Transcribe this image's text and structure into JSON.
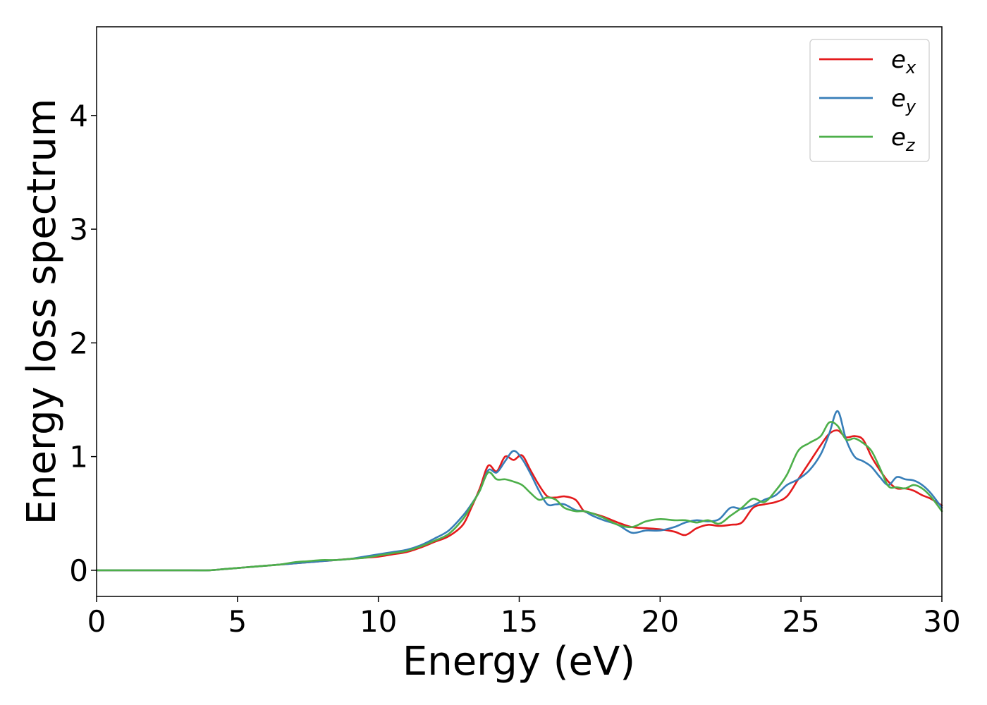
{
  "chart_data": {
    "type": "line",
    "xlabel": "Energy (eV)",
    "ylabel": "Energy loss spectrum",
    "xlim": [
      0,
      30
    ],
    "ylim": [
      -0.23,
      4.78
    ],
    "xticks": [
      0,
      5,
      10,
      15,
      20,
      25,
      30
    ],
    "yticks": [
      0,
      1,
      2,
      3,
      4
    ],
    "grid": false,
    "legend_position": "top-right",
    "series": [
      {
        "name": "e_x",
        "label_main": "e",
        "label_sub": "x",
        "color": "#e41a1c",
        "x": [
          0,
          1,
          2,
          3,
          4,
          4.5,
          5,
          5.5,
          6,
          6.5,
          7,
          7.5,
          8,
          8.5,
          9,
          9.5,
          10,
          10.5,
          11,
          11.5,
          12,
          12.5,
          13,
          13.3,
          13.6,
          13.9,
          14.2,
          14.5,
          14.8,
          15.1,
          15.4,
          15.7,
          16,
          16.3,
          16.6,
          17,
          17.3,
          17.6,
          18,
          18.5,
          19,
          19.5,
          20,
          20.5,
          20.9,
          21.3,
          21.7,
          22.1,
          22.5,
          22.9,
          23.3,
          23.7,
          24.1,
          24.5,
          24.9,
          25.3,
          25.7,
          26,
          26.3,
          26.6,
          26.9,
          27.2,
          27.5,
          27.8,
          28.1,
          28.4,
          28.7,
          29,
          29.3,
          29.6,
          30
        ],
        "y": [
          0.0,
          0.0,
          0.0,
          0.0,
          0.0,
          0.01,
          0.02,
          0.03,
          0.04,
          0.05,
          0.06,
          0.07,
          0.08,
          0.09,
          0.1,
          0.11,
          0.12,
          0.14,
          0.16,
          0.2,
          0.25,
          0.3,
          0.4,
          0.55,
          0.72,
          0.92,
          0.87,
          1.0,
          0.97,
          1.01,
          0.88,
          0.75,
          0.65,
          0.64,
          0.65,
          0.62,
          0.52,
          0.5,
          0.47,
          0.42,
          0.38,
          0.37,
          0.36,
          0.34,
          0.31,
          0.37,
          0.4,
          0.39,
          0.4,
          0.42,
          0.55,
          0.58,
          0.6,
          0.65,
          0.8,
          0.95,
          1.1,
          1.2,
          1.23,
          1.17,
          1.18,
          1.15,
          1.0,
          0.88,
          0.78,
          0.72,
          0.72,
          0.7,
          0.66,
          0.63,
          0.57
        ]
      },
      {
        "name": "e_y",
        "label_main": "e",
        "label_sub": "y",
        "color": "#377eb8",
        "x": [
          0,
          1,
          2,
          3,
          4,
          4.5,
          5,
          5.5,
          6,
          6.5,
          7,
          7.5,
          8,
          8.5,
          9,
          9.5,
          10,
          10.5,
          11,
          11.5,
          12,
          12.5,
          13,
          13.3,
          13.6,
          13.9,
          14.2,
          14.5,
          14.8,
          15.1,
          15.4,
          15.7,
          16,
          16.3,
          16.6,
          17,
          17.3,
          17.6,
          18,
          18.5,
          19,
          19.5,
          20,
          20.5,
          20.9,
          21.3,
          21.7,
          22.1,
          22.5,
          22.9,
          23.3,
          23.7,
          24.1,
          24.5,
          24.9,
          25.3,
          25.7,
          26,
          26.3,
          26.6,
          26.9,
          27.2,
          27.5,
          27.8,
          28.1,
          28.4,
          28.7,
          29,
          29.3,
          29.6,
          30
        ],
        "y": [
          0.0,
          0.0,
          0.0,
          0.0,
          0.0,
          0.01,
          0.02,
          0.03,
          0.04,
          0.05,
          0.06,
          0.07,
          0.08,
          0.09,
          0.1,
          0.12,
          0.14,
          0.16,
          0.18,
          0.22,
          0.28,
          0.35,
          0.48,
          0.58,
          0.7,
          0.88,
          0.86,
          0.96,
          1.05,
          0.98,
          0.85,
          0.7,
          0.58,
          0.58,
          0.58,
          0.53,
          0.52,
          0.48,
          0.44,
          0.4,
          0.33,
          0.35,
          0.35,
          0.38,
          0.42,
          0.44,
          0.43,
          0.45,
          0.55,
          0.54,
          0.57,
          0.62,
          0.66,
          0.75,
          0.8,
          0.88,
          1.02,
          1.2,
          1.4,
          1.15,
          1.0,
          0.96,
          0.91,
          0.82,
          0.75,
          0.82,
          0.8,
          0.79,
          0.75,
          0.68,
          0.55
        ]
      },
      {
        "name": "e_z",
        "label_main": "e",
        "label_sub": "z",
        "color": "#4daf4a",
        "x": [
          0,
          1,
          2,
          3,
          4,
          4.5,
          5,
          5.5,
          6,
          6.5,
          7,
          7.5,
          8,
          8.5,
          9,
          9.5,
          10,
          10.5,
          11,
          11.5,
          12,
          12.5,
          13,
          13.3,
          13.6,
          13.9,
          14.2,
          14.5,
          14.8,
          15.1,
          15.4,
          15.7,
          16,
          16.3,
          16.6,
          17,
          17.3,
          17.6,
          18,
          18.5,
          19,
          19.5,
          20,
          20.5,
          20.9,
          21.3,
          21.7,
          22.1,
          22.5,
          22.9,
          23.3,
          23.7,
          24.1,
          24.5,
          24.9,
          25.3,
          25.7,
          26,
          26.3,
          26.6,
          26.9,
          27.2,
          27.5,
          27.8,
          28.1,
          28.4,
          28.7,
          29,
          29.3,
          29.6,
          30
        ],
        "y": [
          0.0,
          0.0,
          0.0,
          0.0,
          0.0,
          0.01,
          0.02,
          0.03,
          0.04,
          0.05,
          0.07,
          0.08,
          0.09,
          0.09,
          0.1,
          0.11,
          0.13,
          0.15,
          0.17,
          0.21,
          0.26,
          0.32,
          0.45,
          0.57,
          0.7,
          0.86,
          0.8,
          0.8,
          0.78,
          0.75,
          0.68,
          0.62,
          0.64,
          0.62,
          0.55,
          0.52,
          0.52,
          0.5,
          0.46,
          0.4,
          0.38,
          0.43,
          0.45,
          0.44,
          0.44,
          0.42,
          0.44,
          0.41,
          0.48,
          0.55,
          0.63,
          0.6,
          0.7,
          0.84,
          1.05,
          1.12,
          1.18,
          1.3,
          1.27,
          1.15,
          1.16,
          1.12,
          1.05,
          0.9,
          0.74,
          0.73,
          0.72,
          0.75,
          0.72,
          0.65,
          0.52
        ]
      }
    ]
  }
}
